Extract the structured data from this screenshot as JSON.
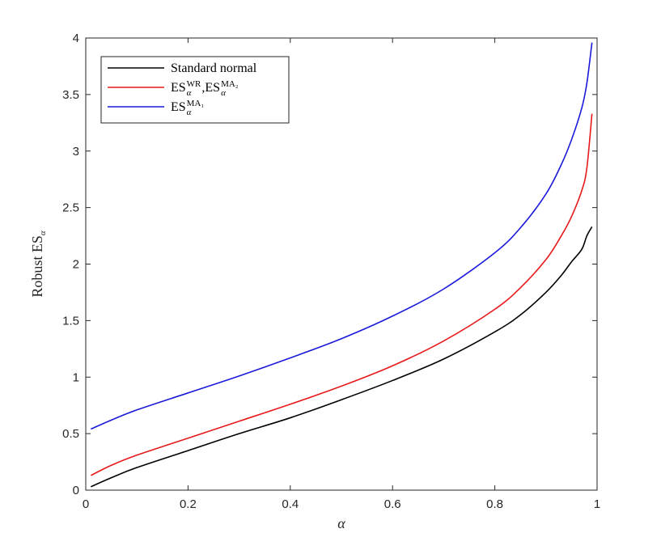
{
  "chart_data": {
    "type": "line",
    "xlabel": "α",
    "ylabel": {
      "main": "Robust ES",
      "sub": "α"
    },
    "xlim": [
      0,
      1
    ],
    "ylim": [
      0,
      4
    ],
    "x_ticks": [
      0,
      0.2,
      0.4,
      0.6,
      0.8,
      1
    ],
    "x_tick_labels": [
      "0",
      "0.2",
      "0.4",
      "0.6",
      "0.8",
      "1"
    ],
    "y_ticks": [
      0,
      0.5,
      1,
      1.5,
      2,
      2.5,
      3,
      3.5,
      4
    ],
    "y_tick_labels": [
      "0",
      "0.5",
      "1",
      "1.5",
      "2",
      "2.5",
      "3",
      "3.5",
      "4"
    ],
    "grid": false,
    "legend_position": "top-left",
    "x": [
      0.01,
      0.05,
      0.1,
      0.2,
      0.3,
      0.4,
      0.5,
      0.6,
      0.7,
      0.8,
      0.85,
      0.9,
      0.93,
      0.95,
      0.97,
      0.98,
      0.99
    ],
    "series": [
      {
        "color": "#000000",
        "legend_parts": [
          {
            "text": "Standard normal"
          }
        ],
        "values": [
          0.03,
          0.11,
          0.2,
          0.35,
          0.5,
          0.64,
          0.8,
          0.97,
          1.16,
          1.4,
          1.55,
          1.75,
          1.9,
          2.02,
          2.13,
          2.25,
          2.33
        ]
      },
      {
        "color": "#e8191b",
        "legend_parts": [
          {
            "text": "ES",
            "sub": "α",
            "sup": "WR"
          },
          {
            "text": ", "
          },
          {
            "text": "ES",
            "sub": "α",
            "sup": "MA₂"
          }
        ],
        "values": [
          0.13,
          0.22,
          0.31,
          0.46,
          0.61,
          0.76,
          0.92,
          1.1,
          1.32,
          1.6,
          1.79,
          2.04,
          2.25,
          2.42,
          2.65,
          2.85,
          3.33
        ]
      },
      {
        "color": "#1a1adb",
        "legend_parts": [
          {
            "text": "ES",
            "sub": "α",
            "sup": "MA₁"
          }
        ],
        "values": [
          0.54,
          0.62,
          0.71,
          0.86,
          1.01,
          1.17,
          1.34,
          1.54,
          1.78,
          2.1,
          2.32,
          2.62,
          2.88,
          3.1,
          3.38,
          3.6,
          3.96
        ]
      }
    ]
  }
}
